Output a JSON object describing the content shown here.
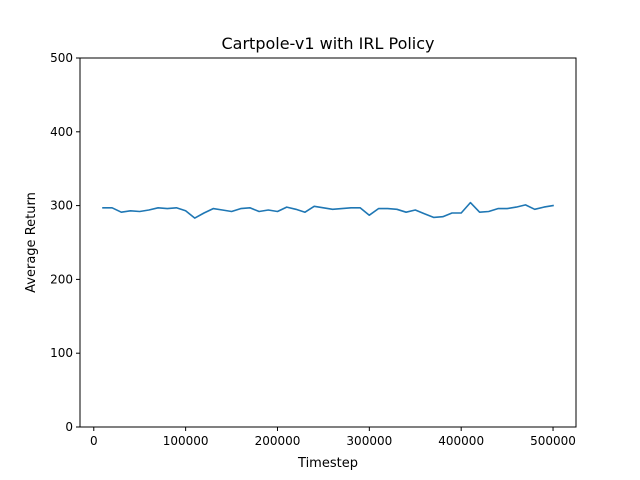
{
  "chart_data": {
    "type": "line",
    "title": "Cartpole-v1 with IRL Policy",
    "xlabel": "Timestep",
    "ylabel": "Average Return",
    "xlim": [
      -15000,
      525000
    ],
    "ylim": [
      0,
      500
    ],
    "xticks": [
      0,
      100000,
      200000,
      300000,
      400000,
      500000
    ],
    "xtick_labels": [
      "0",
      "100000",
      "200000",
      "300000",
      "400000",
      "500000"
    ],
    "yticks": [
      0,
      100,
      200,
      300,
      400,
      500
    ],
    "ytick_labels": [
      "0",
      "100",
      "200",
      "300",
      "400",
      "500"
    ],
    "grid": false,
    "legend": "none",
    "series": [
      {
        "color": "#1f77b4",
        "x": [
          10000,
          20000,
          30000,
          40000,
          50000,
          60000,
          70000,
          80000,
          90000,
          100000,
          110000,
          120000,
          130000,
          140000,
          150000,
          160000,
          170000,
          180000,
          190000,
          200000,
          210000,
          220000,
          230000,
          240000,
          250000,
          260000,
          270000,
          280000,
          290000,
          300000,
          310000,
          320000,
          330000,
          340000,
          350000,
          360000,
          370000,
          380000,
          390000,
          400000,
          410000,
          420000,
          430000,
          440000,
          450000,
          460000,
          470000,
          480000,
          490000,
          500000
        ],
        "values": [
          297,
          297,
          291,
          293,
          292,
          294,
          297,
          296,
          297,
          293,
          283,
          290,
          296,
          294,
          292,
          296,
          297,
          292,
          294,
          292,
          298,
          295,
          291,
          299,
          297,
          295,
          296,
          297,
          297,
          287,
          296,
          296,
          295,
          291,
          294,
          289,
          284,
          285,
          290,
          290,
          304,
          291,
          292,
          296,
          296,
          298,
          301,
          295,
          298,
          300
        ]
      }
    ]
  }
}
